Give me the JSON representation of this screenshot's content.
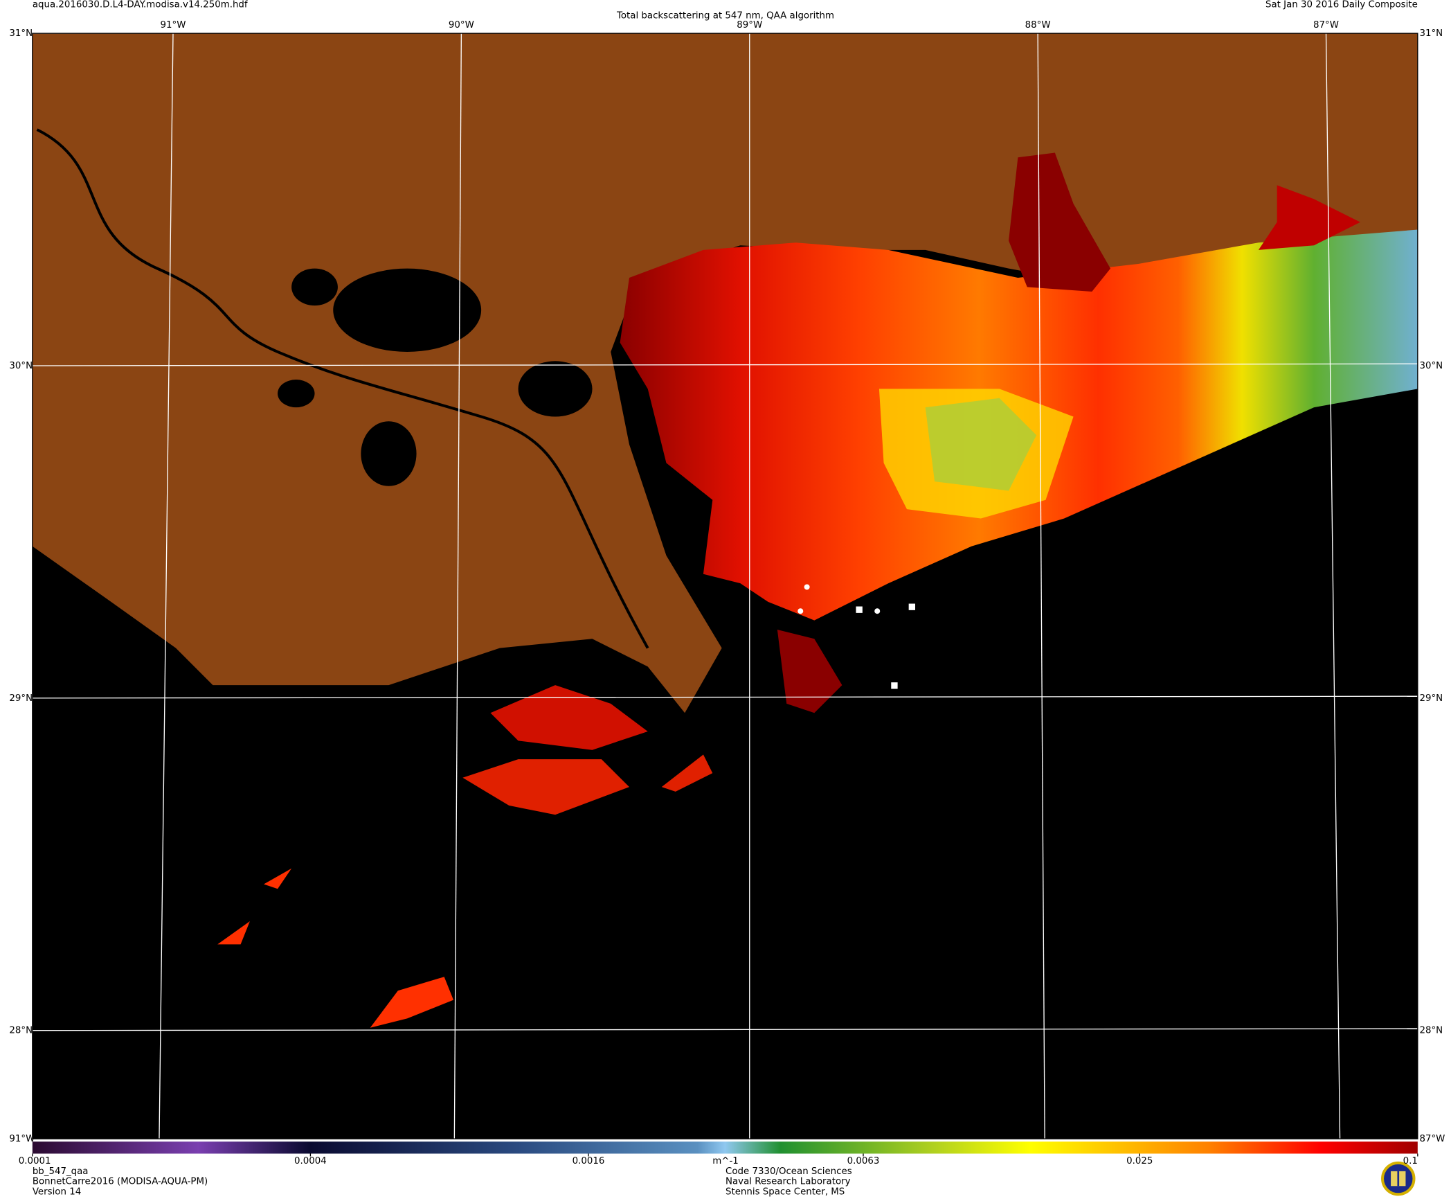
{
  "header": {
    "filename": "aqua.2016030.D.L4-DAY.modisa.v14.250m.hdf",
    "title": "Total backscattering at 547 nm, QAA algorithm",
    "date": "Sat Jan 30 2016 Daily Composite"
  },
  "graticule": {
    "longitudes": [
      {
        "value": -91,
        "label": "91°W"
      },
      {
        "value": -90,
        "label": "90°W"
      },
      {
        "value": -89,
        "label": "89°W"
      },
      {
        "value": -88,
        "label": "88°W"
      },
      {
        "value": -87,
        "label": "87°W"
      }
    ],
    "latitudes": [
      {
        "value": 31,
        "label": "31°N"
      },
      {
        "value": 30,
        "label": "30°N"
      },
      {
        "value": 29,
        "label": "29°N"
      },
      {
        "value": 28,
        "label": "28°N"
      }
    ]
  },
  "colorbar": {
    "lim": [
      0.0001,
      0.1
    ],
    "log": true,
    "ticks": [
      0.0001,
      0.0004,
      0.0016,
      0.0063,
      0.025,
      0.1
    ],
    "unit": "m^-1"
  },
  "footer": {
    "left": [
      "bb_547_qaa",
      "BonnetCarre2016 (MODISA-AQUA-PM)",
      "Version 14"
    ],
    "center": [
      "Code 7330/Ocean Sciences",
      "Naval Research Laboratory",
      "Stennis Space Center, MS"
    ]
  }
}
